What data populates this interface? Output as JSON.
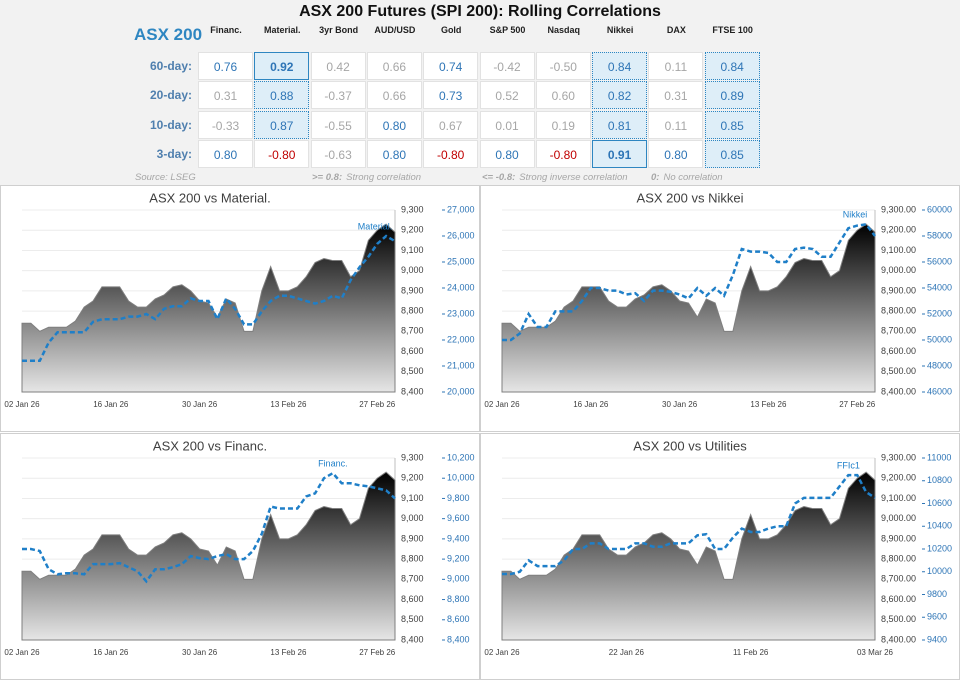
{
  "header": {
    "title": "ASX 200 Futures (SPI 200): Rolling Correlations"
  },
  "table": {
    "corner": "ASX 200",
    "columns": [
      "Financ.",
      "Material.",
      "3yr Bond",
      "AUD/USD",
      "Gold",
      "S&P 500",
      "Nasdaq",
      "Nikkei",
      "DAX",
      "FTSE 100"
    ],
    "rows": [
      {
        "label": "60-day:",
        "cells": [
          {
            "text": "0.76",
            "tone": "pos"
          },
          {
            "text": "0.92",
            "tone": "pos",
            "box": "sel"
          },
          {
            "text": "0.42",
            "tone": "neu"
          },
          {
            "text": "0.66",
            "tone": "neu"
          },
          {
            "text": "0.74",
            "tone": "pos"
          },
          {
            "text": "-0.42",
            "tone": "neu"
          },
          {
            "text": "-0.50",
            "tone": "neu"
          },
          {
            "text": "0.84",
            "tone": "pos",
            "box": "hl"
          },
          {
            "text": "0.11",
            "tone": "neu"
          },
          {
            "text": "0.84",
            "tone": "pos",
            "box": "hl"
          }
        ]
      },
      {
        "label": "20-day:",
        "cells": [
          {
            "text": "0.31",
            "tone": "neu"
          },
          {
            "text": "0.88",
            "tone": "pos",
            "box": "hl"
          },
          {
            "text": "-0.37",
            "tone": "neu"
          },
          {
            "text": "0.66",
            "tone": "neu"
          },
          {
            "text": "0.73",
            "tone": "pos"
          },
          {
            "text": "0.52",
            "tone": "neu"
          },
          {
            "text": "0.60",
            "tone": "neu"
          },
          {
            "text": "0.82",
            "tone": "pos",
            "box": "hl"
          },
          {
            "text": "0.31",
            "tone": "neu"
          },
          {
            "text": "0.89",
            "tone": "pos",
            "box": "hl"
          }
        ]
      },
      {
        "label": "10-day:",
        "cells": [
          {
            "text": "-0.33",
            "tone": "neu"
          },
          {
            "text": "0.87",
            "tone": "pos",
            "box": "hl"
          },
          {
            "text": "-0.55",
            "tone": "neu"
          },
          {
            "text": "0.80",
            "tone": "pos"
          },
          {
            "text": "0.67",
            "tone": "neu"
          },
          {
            "text": "0.01",
            "tone": "neu"
          },
          {
            "text": "0.19",
            "tone": "neu"
          },
          {
            "text": "0.81",
            "tone": "pos",
            "box": "hl"
          },
          {
            "text": "0.11",
            "tone": "neu"
          },
          {
            "text": "0.85",
            "tone": "pos",
            "box": "hl"
          }
        ]
      },
      {
        "label": "3-day:",
        "cells": [
          {
            "text": "0.80",
            "tone": "pos"
          },
          {
            "text": "-0.80",
            "tone": "neg"
          },
          {
            "text": "-0.63",
            "tone": "neu"
          },
          {
            "text": "0.80",
            "tone": "pos"
          },
          {
            "text": "-0.80",
            "tone": "neg"
          },
          {
            "text": "0.80",
            "tone": "pos"
          },
          {
            "text": "-0.80",
            "tone": "neg"
          },
          {
            "text": "0.91",
            "tone": "pos",
            "box": "sel"
          },
          {
            "text": "0.80",
            "tone": "pos"
          },
          {
            "text": "0.85",
            "tone": "pos",
            "box": "hl"
          }
        ]
      }
    ]
  },
  "footer": {
    "source": "Source: LSEG",
    "notes": [
      {
        "key": ">= 0.8:",
        "text": "Strong correlation"
      },
      {
        "key": "<= -0.8:",
        "text": "Strong inverse correlation"
      },
      {
        "key": "0:",
        "text": "No correlation"
      }
    ]
  },
  "chart_data": [
    {
      "type": "area",
      "title": "ASX 200 vs Material.",
      "grid": true,
      "categories": [
        "02 Jan 26",
        null,
        null,
        null,
        null,
        null,
        null,
        null,
        null,
        null,
        "16 Jan 26",
        null,
        null,
        null,
        null,
        null,
        null,
        null,
        null,
        null,
        "30 Jan 26",
        null,
        null,
        null,
        null,
        null,
        null,
        null,
        null,
        null,
        "13 Feb 26",
        null,
        null,
        null,
        null,
        null,
        null,
        null,
        null,
        null,
        "27 Feb 26",
        null,
        null
      ],
      "ylim": [
        8400,
        9300
      ],
      "yticks": [
        {
          "value": 8400,
          "label": "8,400"
        },
        {
          "value": 8500,
          "label": "8,500"
        },
        {
          "value": 8600,
          "label": "8,600"
        },
        {
          "value": 8700,
          "label": "8,700"
        },
        {
          "value": 8800,
          "label": "8,800"
        },
        {
          "value": 8900,
          "label": "8,900"
        },
        {
          "value": 9000,
          "label": "9,000"
        },
        {
          "value": 9100,
          "label": "9,100"
        },
        {
          "value": 9200,
          "label": "9,200"
        },
        {
          "value": 9300,
          "label": "9,300"
        }
      ],
      "y2lim": [
        20000,
        27000
      ],
      "y2ticks": [
        {
          "value": 20000,
          "label": "20,000"
        },
        {
          "value": 21000,
          "label": "21,000"
        },
        {
          "value": 22000,
          "label": "22,000"
        },
        {
          "value": 23000,
          "label": "23,000"
        },
        {
          "value": 24000,
          "label": "24,000"
        },
        {
          "value": 25000,
          "label": "25,000"
        },
        {
          "value": 26000,
          "label": "26,000"
        },
        {
          "value": 27000,
          "label": "27,000"
        }
      ],
      "series": [
        {
          "color": "#000000",
          "values": [
            8740,
            8740,
            8700,
            8720,
            8720,
            8720,
            8750,
            8820,
            8850,
            8920,
            8920,
            8920,
            8850,
            8820,
            8820,
            8860,
            8880,
            8920,
            8930,
            8900,
            8850,
            8840,
            8770,
            8860,
            8840,
            8700,
            8700,
            8900,
            9020,
            8900,
            8900,
            8920,
            8970,
            9040,
            9060,
            9050,
            9050,
            8970,
            9000,
            9150,
            9200,
            9230,
            9190
          ]
        },
        {
          "name": "Material.",
          "color": "#1f7fc8",
          "axis": "y2",
          "values": [
            21200,
            21200,
            21200,
            21900,
            22300,
            22300,
            22300,
            22300,
            22700,
            22800,
            22800,
            22800,
            22900,
            22900,
            23000,
            22800,
            23200,
            23300,
            23300,
            23600,
            23500,
            23500,
            22800,
            23600,
            23200,
            22600,
            22600,
            23100,
            23500,
            23700,
            23700,
            23600,
            23500,
            23400,
            23500,
            23700,
            23600,
            24300,
            24800,
            25200,
            25700,
            26000,
            25800
          ]
        }
      ]
    },
    {
      "type": "area",
      "title": "ASX 200 vs Nikkei",
      "grid": true,
      "categories": [
        "02 Jan 26",
        null,
        null,
        null,
        null,
        null,
        null,
        null,
        null,
        null,
        "16 Jan 26",
        null,
        null,
        null,
        null,
        null,
        null,
        null,
        null,
        null,
        "30 Jan 26",
        null,
        null,
        null,
        null,
        null,
        null,
        null,
        null,
        null,
        "13 Feb 26",
        null,
        null,
        null,
        null,
        null,
        null,
        null,
        null,
        null,
        "27 Feb 26",
        null,
        null
      ],
      "ylim": [
        8400,
        9300
      ],
      "yticks": [
        {
          "value": 8400,
          "label": "8,400.00"
        },
        {
          "value": 8500,
          "label": "8,500.00"
        },
        {
          "value": 8600,
          "label": "8,600.00"
        },
        {
          "value": 8700,
          "label": "8,700.00"
        },
        {
          "value": 8800,
          "label": "8,800.00"
        },
        {
          "value": 8900,
          "label": "8,900.00"
        },
        {
          "value": 9000,
          "label": "9,000.00"
        },
        {
          "value": 9100,
          "label": "9,100.00"
        },
        {
          "value": 9200,
          "label": "9,200.00"
        },
        {
          "value": 9300,
          "label": "9,300.00"
        }
      ],
      "y2lim": [
        46000,
        60000
      ],
      "y2ticks": [
        46000,
        48000,
        50000,
        52000,
        54000,
        56000,
        58000,
        60000
      ],
      "series": [
        {
          "color": "#000000",
          "values": [
            8740,
            8740,
            8700,
            8720,
            8720,
            8720,
            8750,
            8820,
            8850,
            8920,
            8920,
            8920,
            8850,
            8820,
            8820,
            8860,
            8880,
            8920,
            8930,
            8900,
            8850,
            8840,
            8770,
            8860,
            8840,
            8700,
            8700,
            8900,
            9020,
            8900,
            8900,
            8920,
            8970,
            9040,
            9060,
            9050,
            9050,
            8970,
            9000,
            9150,
            9200,
            9230,
            9190
          ]
        },
        {
          "name": "Nikkei",
          "color": "#1f7fc8",
          "axis": "y2",
          "values": [
            50000,
            50000,
            50500,
            52000,
            51000,
            51000,
            52200,
            52200,
            52200,
            53000,
            54000,
            54000,
            53800,
            53800,
            53500,
            53600,
            53000,
            53800,
            53800,
            53700,
            53500,
            53200,
            54000,
            53400,
            54000,
            53400,
            55000,
            57000,
            56800,
            56800,
            56700,
            56000,
            56000,
            57000,
            57100,
            57000,
            56400,
            56400,
            57500,
            58600,
            58800,
            58900,
            58000
          ]
        }
      ]
    },
    {
      "type": "area",
      "title": "ASX 200 vs Financ.",
      "grid": true,
      "categories": [
        "02 Jan 26",
        null,
        null,
        null,
        null,
        null,
        null,
        null,
        null,
        null,
        "16 Jan 26",
        null,
        null,
        null,
        null,
        null,
        null,
        null,
        null,
        null,
        "30 Jan 26",
        null,
        null,
        null,
        null,
        null,
        null,
        null,
        null,
        null,
        "13 Feb 26",
        null,
        null,
        null,
        null,
        null,
        null,
        null,
        null,
        null,
        "27 Feb 26",
        null,
        null
      ],
      "ylim": [
        8400,
        9300
      ],
      "yticks": [
        {
          "value": 8400,
          "label": "8,400"
        },
        {
          "value": 8500,
          "label": "8,500"
        },
        {
          "value": 8600,
          "label": "8,600"
        },
        {
          "value": 8700,
          "label": "8,700"
        },
        {
          "value": 8800,
          "label": "8,800"
        },
        {
          "value": 8900,
          "label": "8,900"
        },
        {
          "value": 9000,
          "label": "9,000"
        },
        {
          "value": 9100,
          "label": "9,100"
        },
        {
          "value": 9200,
          "label": "9,200"
        },
        {
          "value": 9300,
          "label": "9,300"
        }
      ],
      "y2lim": [
        8400,
        10200
      ],
      "y2ticks": [
        {
          "value": 8400,
          "label": "8,400"
        },
        {
          "value": 8600,
          "label": "8,600"
        },
        {
          "value": 8800,
          "label": "8,800"
        },
        {
          "value": 9000,
          "label": "9,000"
        },
        {
          "value": 9200,
          "label": "9,200"
        },
        {
          "value": 9400,
          "label": "9,400"
        },
        {
          "value": 9600,
          "label": "9,600"
        },
        {
          "value": 9800,
          "label": "9,800"
        },
        {
          "value": 10000,
          "label": "10,000"
        },
        {
          "value": 10200,
          "label": "10,200"
        }
      ],
      "series": [
        {
          "color": "#000000",
          "values": [
            8740,
            8740,
            8700,
            8720,
            8720,
            8720,
            8750,
            8820,
            8850,
            8920,
            8920,
            8920,
            8850,
            8820,
            8820,
            8860,
            8880,
            8920,
            8930,
            8900,
            8850,
            8840,
            8770,
            8860,
            8840,
            8700,
            8700,
            8900,
            9020,
            8900,
            8900,
            8920,
            8970,
            9040,
            9060,
            9050,
            9050,
            8970,
            9000,
            9150,
            9200,
            9230,
            9190
          ]
        },
        {
          "name": "Financ.",
          "color": "#1f7fc8",
          "axis": "y2",
          "values": [
            9300,
            9300,
            9280,
            9100,
            9050,
            9060,
            9060,
            9050,
            9150,
            9150,
            9150,
            9160,
            9120,
            9080,
            8980,
            9100,
            9100,
            9120,
            9150,
            9230,
            9210,
            9200,
            9230,
            9250,
            9200,
            9200,
            9280,
            9450,
            9720,
            9700,
            9700,
            9700,
            9820,
            9850,
            10000,
            10050,
            9950,
            9950,
            9930,
            9920,
            9900,
            9880,
            9800
          ]
        }
      ]
    },
    {
      "type": "area",
      "title": "ASX 200 vs Utilities",
      "grid": true,
      "categories": [
        "02 Jan 26",
        null,
        null,
        null,
        null,
        null,
        null,
        null,
        null,
        null,
        null,
        null,
        null,
        null,
        "22 Jan 26",
        null,
        null,
        null,
        null,
        null,
        null,
        null,
        null,
        null,
        null,
        null,
        null,
        null,
        "11 Feb 26",
        null,
        null,
        null,
        null,
        null,
        null,
        null,
        null,
        null,
        null,
        null,
        null,
        null,
        "03 Mar 26"
      ],
      "ylim": [
        8400,
        9300
      ],
      "yticks": [
        {
          "value": 8400,
          "label": "8,400.00"
        },
        {
          "value": 8500,
          "label": "8,500.00"
        },
        {
          "value": 8600,
          "label": "8,600.00"
        },
        {
          "value": 8700,
          "label": "8,700.00"
        },
        {
          "value": 8800,
          "label": "8,800.00"
        },
        {
          "value": 8900,
          "label": "8,900.00"
        },
        {
          "value": 9000,
          "label": "9,000.00"
        },
        {
          "value": 9100,
          "label": "9,100.00"
        },
        {
          "value": 9200,
          "label": "9,200.00"
        },
        {
          "value": 9300,
          "label": "9,300.00"
        }
      ],
      "y2lim": [
        9400,
        11000
      ],
      "y2ticks": [
        9400,
        9600,
        9800,
        10000,
        10200,
        10400,
        10600,
        10800,
        11000
      ],
      "series": [
        {
          "color": "#000000",
          "values": [
            8740,
            8740,
            8700,
            8720,
            8720,
            8720,
            8750,
            8820,
            8850,
            8920,
            8920,
            8920,
            8850,
            8820,
            8820,
            8860,
            8880,
            8920,
            8930,
            8900,
            8850,
            8840,
            8770,
            8860,
            8840,
            8700,
            8700,
            8900,
            9020,
            8900,
            8900,
            8920,
            8970,
            9040,
            9060,
            9050,
            9050,
            8970,
            9000,
            9150,
            9200,
            9230,
            9190
          ]
        },
        {
          "name": "FFIc1",
          "color": "#1f7fc8",
          "axis": "y2",
          "values": [
            9980,
            9980,
            10000,
            10100,
            10050,
            10050,
            10050,
            10100,
            10200,
            10200,
            10250,
            10250,
            10200,
            10200,
            10200,
            10250,
            10250,
            10220,
            10220,
            10250,
            10250,
            10250,
            10320,
            10330,
            10200,
            10200,
            10300,
            10380,
            10350,
            10350,
            10380,
            10400,
            10400,
            10600,
            10650,
            10650,
            10650,
            10650,
            10750,
            10850,
            10850,
            10700,
            10650
          ]
        }
      ]
    }
  ]
}
